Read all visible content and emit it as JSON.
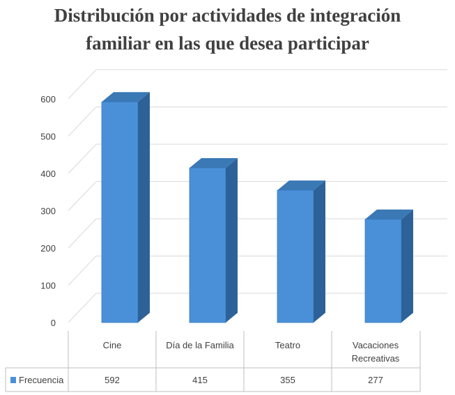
{
  "title_line1": "Distribución por actividades de integración",
  "title_line2": "familiar en las que desea participar",
  "chart_data": {
    "type": "bar",
    "title": "Distribución por actividades de integración familiar en las que desea participar",
    "categories": [
      "Cine",
      "Día de la Familia",
      "Teatro",
      "Vacaciones Recreativas"
    ],
    "category_lines": [
      [
        "Cine"
      ],
      [
        "Día de la Familia"
      ],
      [
        "Teatro"
      ],
      [
        "Vacaciones",
        "Recreativas"
      ]
    ],
    "series": [
      {
        "name": "Frecuencia",
        "values": [
          592,
          415,
          355,
          277
        ],
        "color": "#4a90d9"
      }
    ],
    "ylim": [
      0,
      600
    ],
    "yticks": [
      0,
      100,
      200,
      300,
      400,
      500,
      600
    ],
    "grid": true,
    "style": "3d-column",
    "legend": "data-table",
    "table_values": [
      "592",
      "415",
      "355",
      "277"
    ]
  }
}
